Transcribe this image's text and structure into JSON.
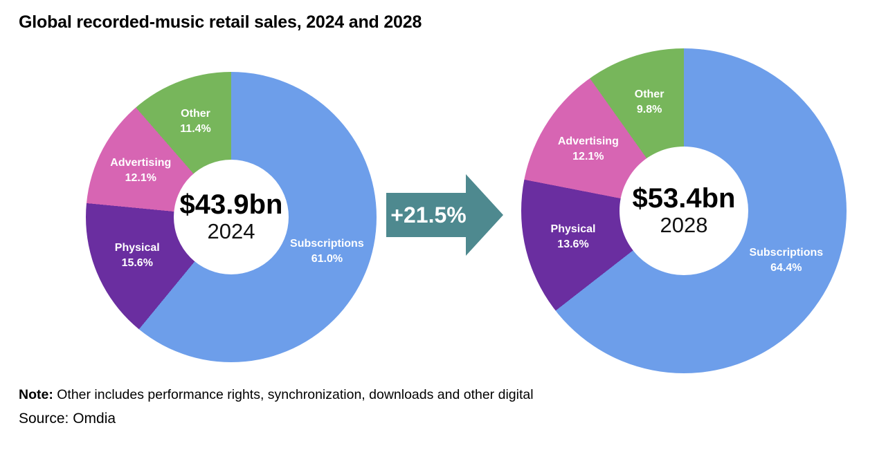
{
  "title": "Global recorded-music retail sales, 2024 and 2028",
  "arrow": {
    "label": "+21.5%",
    "color": "#4E898F"
  },
  "note": {
    "prefix": "Note:",
    "text": " Other includes performance rights, synchronization, downloads and other digital"
  },
  "source": "Source: Omdia",
  "colors": {
    "subscriptions": "#6D9EEA",
    "physical": "#6A2EA0",
    "advertising": "#D765B3",
    "other": "#77B65B",
    "arrow": "#4E898F"
  },
  "chart_data": [
    {
      "type": "pie",
      "subtype": "donut",
      "name": "2024",
      "center_value": "$43.9bn",
      "center_label": "2024",
      "total_label": "$43.9bn",
      "slices": [
        {
          "label": "Subscriptions",
          "value": 61.0,
          "display": "61.0%",
          "color": "#6D9EEA"
        },
        {
          "label": "Physical",
          "value": 15.6,
          "display": "15.6%",
          "color": "#6A2EA0"
        },
        {
          "label": "Advertising",
          "value": 12.1,
          "display": "12.1%",
          "color": "#D765B3"
        },
        {
          "label": "Other",
          "value": 11.4,
          "display": "11.4%",
          "color": "#77B65B"
        }
      ]
    },
    {
      "type": "pie",
      "subtype": "donut",
      "name": "2028",
      "center_value": "$53.4bn",
      "center_label": "2028",
      "total_label": "$53.4bn",
      "slices": [
        {
          "label": "Subscriptions",
          "value": 64.4,
          "display": "64.4%",
          "color": "#6D9EEA"
        },
        {
          "label": "Physical",
          "value": 13.6,
          "display": "13.6%",
          "color": "#6A2EA0"
        },
        {
          "label": "Advertising",
          "value": 12.1,
          "display": "12.1%",
          "color": "#D765B3"
        },
        {
          "label": "Other",
          "value": 9.8,
          "display": "9.8%",
          "color": "#77B65B"
        }
      ]
    }
  ]
}
